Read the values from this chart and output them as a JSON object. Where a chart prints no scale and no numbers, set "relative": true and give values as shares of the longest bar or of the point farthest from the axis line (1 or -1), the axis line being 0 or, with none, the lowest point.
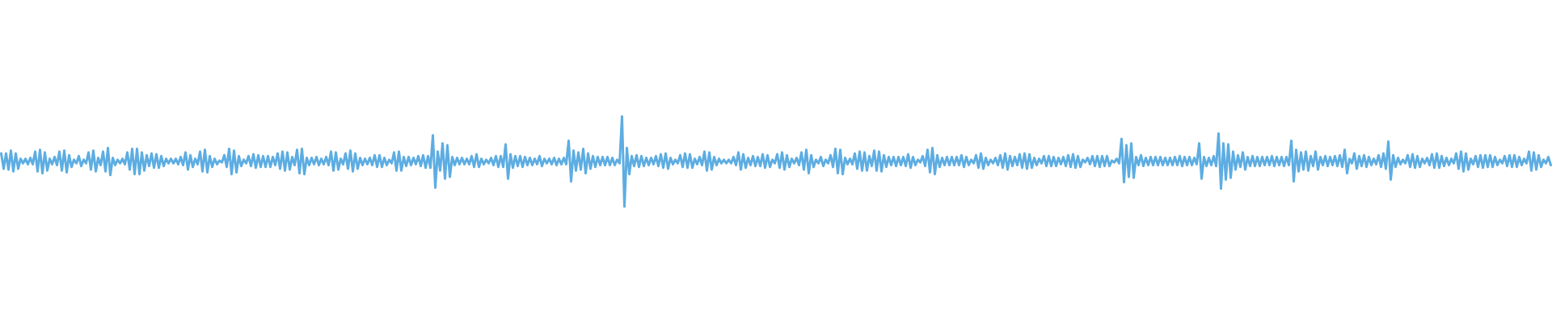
{
  "chart_data": {
    "type": "line",
    "relative": true,
    "categories": [
      null,
      null,
      null,
      null,
      null,
      null,
      null,
      null,
      null,
      null,
      null,
      null,
      null,
      null,
      null,
      null,
      null,
      null,
      null,
      null,
      null,
      null,
      null,
      null,
      null,
      null,
      null,
      null,
      null,
      null,
      null,
      null,
      null,
      null,
      null,
      null,
      null,
      null,
      null,
      null,
      null,
      null,
      null,
      null,
      null,
      null,
      null,
      null,
      null,
      null,
      null,
      null,
      null,
      null,
      null,
      null,
      null,
      null,
      null,
      null,
      null,
      null,
      null,
      null,
      null,
      null,
      null,
      null,
      null,
      null,
      null,
      null,
      null,
      null,
      null,
      null,
      null,
      null,
      null,
      null,
      null,
      null,
      null,
      null,
      null,
      null,
      null,
      null,
      null,
      null,
      null,
      null,
      null,
      null,
      null,
      null,
      null,
      null,
      null,
      null,
      null,
      null,
      null,
      null,
      null,
      null,
      null,
      null,
      null,
      null,
      null,
      null,
      null,
      null,
      null,
      null,
      null,
      null,
      null,
      null,
      null,
      null,
      null,
      null,
      null,
      null,
      null,
      null,
      null,
      null,
      null,
      null,
      null,
      null,
      null,
      null,
      null,
      null,
      null,
      null,
      null,
      null,
      null,
      null,
      null,
      null,
      null,
      null,
      null,
      null,
      null,
      null,
      null,
      null,
      null,
      null,
      null,
      null,
      null,
      null,
      null,
      null,
      null,
      null,
      null,
      null,
      null,
      null,
      null,
      null,
      null,
      null,
      null,
      null,
      null,
      null,
      null,
      null,
      null,
      null,
      null,
      null,
      null,
      null,
      null,
      null,
      null,
      null,
      null,
      null,
      null,
      null,
      null,
      null,
      null,
      null,
      null,
      null,
      null,
      null,
      null,
      null,
      null,
      null,
      null,
      null,
      null,
      null,
      null,
      null,
      null,
      null,
      null,
      null,
      null,
      null,
      null,
      null,
      null,
      null,
      null,
      null,
      null,
      null,
      null,
      null,
      null,
      null,
      null,
      null,
      null,
      null,
      null,
      null,
      null,
      null,
      null,
      null,
      null,
      null,
      null,
      null,
      null,
      null,
      null,
      null,
      null,
      null,
      null,
      null,
      null,
      null,
      null,
      null,
      null,
      null,
      null,
      null,
      null,
      null,
      null,
      null,
      null,
      null,
      null,
      null,
      null,
      null,
      null,
      null,
      null,
      null,
      null,
      null,
      null,
      null,
      null,
      null,
      null,
      null,
      null,
      null,
      null,
      null,
      null,
      null,
      null,
      null,
      null,
      null,
      null,
      null,
      null,
      null,
      null,
      null,
      null,
      null,
      null,
      null,
      null,
      null,
      null,
      null,
      null,
      null,
      null,
      null,
      null,
      null,
      null,
      null,
      null,
      null,
      null,
      null,
      null,
      null,
      null,
      null,
      null,
      null,
      null,
      null,
      null,
      null,
      null,
      null,
      null,
      null,
      null,
      null,
      null,
      null,
      null,
      null,
      null,
      null,
      null,
      null,
      null,
      null,
      null,
      null,
      null,
      null,
      null,
      null,
      null,
      null,
      null,
      null,
      null,
      null,
      null,
      null,
      null,
      null,
      null,
      null,
      null,
      null,
      null,
      null,
      null,
      null,
      null,
      null,
      null,
      null,
      null,
      null,
      null,
      null,
      null,
      null,
      null,
      null,
      null,
      null,
      null,
      null,
      null,
      null,
      null,
      null,
      null,
      null,
      null,
      null,
      null,
      null,
      null,
      null,
      null,
      null,
      null,
      null,
      null,
      null,
      null,
      null,
      null,
      null,
      null,
      null,
      null,
      null,
      null,
      null,
      null,
      null,
      null,
      null,
      null,
      null,
      null,
      null,
      null,
      null,
      null,
      null,
      null,
      null,
      null,
      null,
      null,
      null,
      null,
      null,
      null,
      null,
      null,
      null,
      null,
      null,
      null,
      null,
      null,
      null,
      null,
      null,
      null,
      null,
      null,
      null,
      null,
      null,
      null,
      null,
      null,
      null,
      null,
      null,
      null,
      null,
      null,
      null,
      null,
      null,
      null,
      null,
      null,
      null,
      null,
      null,
      null,
      null,
      null,
      null,
      null,
      null,
      null,
      null,
      null,
      null,
      null,
      null,
      null,
      null,
      null,
      null,
      null,
      null,
      null,
      null,
      null,
      null,
      null,
      null,
      null,
      null,
      null,
      null,
      null,
      null,
      null,
      null,
      null,
      null,
      null,
      null,
      null,
      null,
      null,
      null,
      null,
      null,
      null,
      null,
      null,
      null,
      null,
      null,
      null,
      null,
      null,
      null,
      null,
      null,
      null,
      null,
      null,
      null,
      null,
      null,
      null,
      null,
      null,
      null,
      null,
      null,
      null,
      null,
      null,
      null,
      null,
      null,
      null,
      null,
      null,
      null,
      null,
      null,
      null,
      null,
      null,
      null,
      null,
      null,
      null,
      null,
      null,
      null,
      null,
      null,
      null,
      null,
      null,
      null,
      null,
      null,
      null,
      null,
      null,
      null,
      null,
      null,
      null,
      null,
      null,
      null,
      null,
      null,
      null,
      null,
      null,
      null,
      null,
      null,
      null,
      null,
      null,
      null,
      null,
      null,
      null,
      null,
      null,
      null,
      null,
      null,
      null,
      null,
      null,
      null,
      null,
      null,
      null,
      null,
      null,
      null,
      null,
      null,
      null,
      null,
      null,
      null,
      null,
      null,
      null,
      null,
      null,
      null,
      null,
      null,
      null,
      null,
      null,
      null,
      null,
      null,
      null,
      null,
      null,
      null,
      null,
      null,
      null,
      null,
      null,
      null,
      null,
      null,
      null,
      null,
      null,
      null,
      null,
      null
    ],
    "series": [
      {
        "color": "#5dade2",
        "values": [
          0.59,
          0.42,
          0.59,
          0.41,
          0.62,
          0.39,
          0.59,
          0.42,
          0.53,
          0.48,
          0.53,
          0.47,
          0.54,
          0.47,
          0.61,
          0.39,
          0.63,
          0.37,
          0.6,
          0.4,
          0.53,
          0.47,
          0.55,
          0.46,
          0.61,
          0.4,
          0.62,
          0.38,
          0.57,
          0.44,
          0.52,
          0.48,
          0.56,
          0.45,
          0.52,
          0.48,
          0.6,
          0.41,
          0.62,
          0.39,
          0.54,
          0.46,
          0.61,
          0.39,
          0.65,
          0.35,
          0.54,
          0.46,
          0.52,
          0.48,
          0.53,
          0.47,
          0.6,
          0.41,
          0.64,
          0.36,
          0.64,
          0.36,
          0.6,
          0.4,
          0.57,
          0.45,
          0.59,
          0.43,
          0.58,
          0.43,
          0.56,
          0.45,
          0.53,
          0.48,
          0.53,
          0.48,
          0.53,
          0.47,
          0.55,
          0.46,
          0.6,
          0.41,
          0.57,
          0.44,
          0.53,
          0.47,
          0.61,
          0.39,
          0.63,
          0.38,
          0.56,
          0.44,
          0.53,
          0.47,
          0.51,
          0.49,
          0.57,
          0.44,
          0.64,
          0.36,
          0.62,
          0.38,
          0.56,
          0.45,
          0.52,
          0.48,
          0.56,
          0.45,
          0.58,
          0.43,
          0.57,
          0.44,
          0.56,
          0.44,
          0.56,
          0.44,
          0.55,
          0.46,
          0.59,
          0.42,
          0.61,
          0.4,
          0.6,
          0.41,
          0.55,
          0.46,
          0.63,
          0.37,
          0.64,
          0.36,
          0.54,
          0.46,
          0.54,
          0.47,
          0.55,
          0.46,
          0.53,
          0.47,
          0.55,
          0.46,
          0.61,
          0.4,
          0.6,
          0.41,
          0.53,
          0.47,
          0.59,
          0.42,
          0.62,
          0.39,
          0.59,
          0.42,
          0.54,
          0.46,
          0.53,
          0.47,
          0.54,
          0.46,
          0.57,
          0.44,
          0.57,
          0.44,
          0.54,
          0.46,
          0.52,
          0.48,
          0.6,
          0.4,
          0.61,
          0.4,
          0.55,
          0.45,
          0.55,
          0.46,
          0.54,
          0.47,
          0.56,
          0.45,
          0.57,
          0.43,
          0.56,
          0.43,
          0.79,
          0.21,
          0.61,
          0.4,
          0.7,
          0.31,
          0.68,
          0.33,
          0.55,
          0.46,
          0.54,
          0.47,
          0.54,
          0.47,
          0.53,
          0.47,
          0.56,
          0.44,
          0.58,
          0.44,
          0.53,
          0.47,
          0.52,
          0.48,
          0.54,
          0.46,
          0.56,
          0.44,
          0.56,
          0.44,
          0.69,
          0.31,
          0.58,
          0.43,
          0.56,
          0.45,
          0.56,
          0.44,
          0.55,
          0.46,
          0.54,
          0.46,
          0.53,
          0.47,
          0.56,
          0.45,
          0.53,
          0.48,
          0.53,
          0.47,
          0.54,
          0.46,
          0.53,
          0.47,
          0.54,
          0.47,
          0.73,
          0.28,
          0.62,
          0.4,
          0.6,
          0.41,
          0.64,
          0.37,
          0.59,
          0.42,
          0.56,
          0.44,
          0.55,
          0.46,
          0.55,
          0.46,
          0.55,
          0.46,
          0.54,
          0.46,
          0.52,
          0.48,
          1,
          0,
          0.65,
          0.36,
          0.56,
          0.45,
          0.57,
          0.44,
          0.56,
          0.45,
          0.54,
          0.46,
          0.54,
          0.47,
          0.56,
          0.45,
          0.58,
          0.43,
          0.59,
          0.42,
          0.54,
          0.47,
          0.52,
          0.48,
          0.57,
          0.44,
          0.59,
          0.43,
          0.58,
          0.43,
          0.53,
          0.47,
          0.55,
          0.46,
          0.61,
          0.4,
          0.6,
          0.41,
          0.55,
          0.46,
          0.53,
          0.48,
          0.52,
          0.48,
          0.52,
          0.48,
          0.55,
          0.46,
          0.6,
          0.41,
          0.58,
          0.43,
          0.54,
          0.46,
          0.56,
          0.45,
          0.55,
          0.45,
          0.58,
          0.43,
          0.57,
          0.44,
          0.52,
          0.48,
          0.58,
          0.43,
          0.6,
          0.41,
          0.57,
          0.44,
          0.53,
          0.48,
          0.54,
          0.46,
          0.6,
          0.41,
          0.63,
          0.37,
          0.57,
          0.44,
          0.52,
          0.48,
          0.55,
          0.45,
          0.52,
          0.48,
          0.57,
          0.44,
          0.64,
          0.37,
          0.63,
          0.36,
          0.54,
          0.47,
          0.53,
          0.47,
          0.59,
          0.42,
          0.61,
          0.4,
          0.6,
          0.4,
          0.56,
          0.45,
          0.62,
          0.4,
          0.61,
          0.39,
          0.57,
          0.44,
          0.55,
          0.46,
          0.55,
          0.45,
          0.55,
          0.46,
          0.55,
          0.45,
          0.58,
          0.43,
          0.55,
          0.46,
          0.52,
          0.49,
          0.56,
          0.45,
          0.63,
          0.38,
          0.65,
          0.36,
          0.57,
          0.44,
          0.54,
          0.46,
          0.55,
          0.46,
          0.55,
          0.46,
          0.55,
          0.46,
          0.57,
          0.44,
          0.55,
          0.46,
          0.52,
          0.48,
          0.57,
          0.43,
          0.59,
          0.42,
          0.54,
          0.46,
          0.52,
          0.48,
          0.54,
          0.46,
          0.57,
          0.43,
          0.59,
          0.41,
          0.56,
          0.45,
          0.55,
          0.46,
          0.58,
          0.43,
          0.59,
          0.42,
          0.58,
          0.43,
          0.54,
          0.46,
          0.53,
          0.48,
          0.56,
          0.45,
          0.56,
          0.45,
          0.55,
          0.45,
          0.54,
          0.47,
          0.55,
          0.45,
          0.57,
          0.44,
          0.58,
          0.43,
          0.56,
          0.44,
          0.52,
          0.49,
          0.54,
          0.47,
          0.56,
          0.45,
          0.56,
          0.44,
          0.56,
          0.45,
          0.56,
          0.45,
          0.51,
          0.49,
          0.53,
          0.48,
          0.75,
          0.27,
          0.68,
          0.33,
          0.7,
          0.32,
          0.55,
          0.46,
          0.57,
          0.45,
          0.54,
          0.46,
          0.55,
          0.46,
          0.55,
          0.46,
          0.55,
          0.46,
          0.54,
          0.46,
          0.54,
          0.46,
          0.55,
          0.46,
          0.56,
          0.45,
          0.55,
          0.46,
          0.55,
          0.46,
          0.54,
          0.47,
          0.7,
          0.31,
          0.55,
          0.45,
          0.54,
          0.46,
          0.56,
          0.45,
          0.81,
          0.2,
          0.7,
          0.3,
          0.69,
          0.32,
          0.61,
          0.41,
          0.57,
          0.44,
          0.6,
          0.41,
          0.55,
          0.45,
          0.56,
          0.45,
          0.55,
          0.45,
          0.55,
          0.46,
          0.55,
          0.46,
          0.56,
          0.45,
          0.55,
          0.46,
          0.55,
          0.45,
          0.55,
          0.46,
          0.73,
          0.28,
          0.63,
          0.39,
          0.6,
          0.41,
          0.61,
          0.4,
          0.56,
          0.45,
          0.61,
          0.41,
          0.55,
          0.46,
          0.56,
          0.45,
          0.55,
          0.46,
          0.56,
          0.45,
          0.57,
          0.44,
          0.63,
          0.37,
          0.53,
          0.48,
          0.59,
          0.42,
          0.56,
          0.45,
          0.57,
          0.44,
          0.55,
          0.46,
          0.53,
          0.47,
          0.57,
          0.44,
          0.59,
          0.42,
          0.72,
          0.3,
          0.57,
          0.44,
          0.54,
          0.47,
          0.52,
          0.48,
          0.57,
          0.44,
          0.58,
          0.43,
          0.56,
          0.44,
          0.53,
          0.48,
          0.54,
          0.46,
          0.58,
          0.43,
          0.59,
          0.43,
          0.56,
          0.45,
          0.54,
          0.46,
          0.53,
          0.48,
          0.59,
          0.42,
          0.61,
          0.39,
          0.59,
          0.41,
          0.53,
          0.47,
          0.56,
          0.44,
          0.57,
          0.43,
          0.57,
          0.44,
          0.57,
          0.44,
          0.55,
          0.46,
          0.52,
          0.48,
          0.56,
          0.45,
          0.57,
          0.44,
          0.57,
          0.44,
          0.55,
          0.46,
          0.53,
          0.48,
          0.61,
          0.4,
          0.6,
          0.41,
          0.57,
          0.44,
          0.52,
          0.48,
          0.55,
          0.46
        ]
      }
    ]
  }
}
